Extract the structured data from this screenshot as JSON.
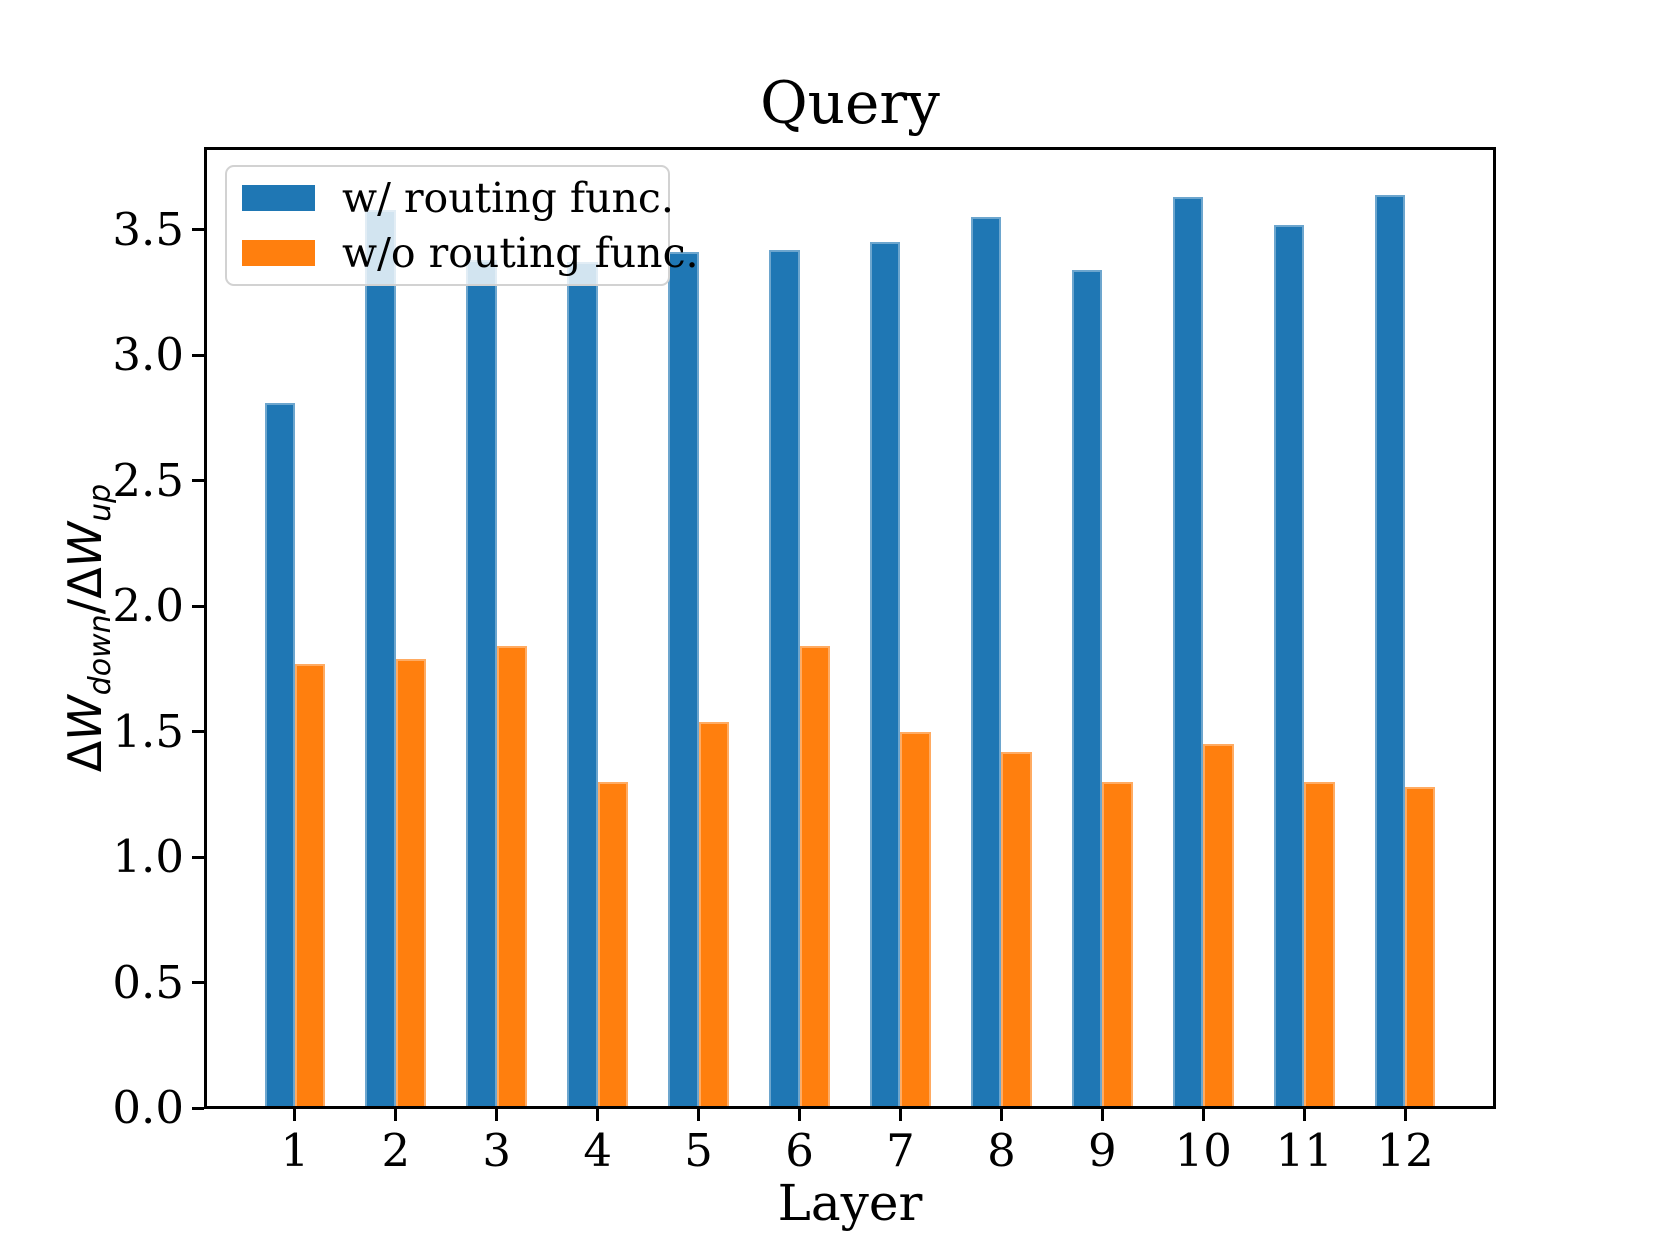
{
  "title": "Query",
  "chart_data": {
    "type": "bar",
    "title": "Query",
    "xlabel": "Layer",
    "ylabel": "ΔW_down/ΔW_up",
    "categories": [
      "1",
      "2",
      "3",
      "4",
      "5",
      "6",
      "7",
      "8",
      "9",
      "10",
      "11",
      "12"
    ],
    "series": [
      {
        "name": "w/ routing func.",
        "color": "#1f77b4",
        "values": [
          2.81,
          3.58,
          3.38,
          3.37,
          3.41,
          3.42,
          3.45,
          3.55,
          3.34,
          3.63,
          3.52,
          3.64
        ]
      },
      {
        "name": "w/o routing func.",
        "color": "#ff7f0e",
        "values": [
          1.77,
          1.79,
          1.84,
          1.3,
          1.54,
          1.84,
          1.5,
          1.42,
          1.3,
          1.45,
          1.3,
          1.28
        ]
      }
    ],
    "ylim": [
      0,
      3.822
    ],
    "xlim": [
      0.12,
      12.88
    ],
    "yticks": [
      "0.0",
      "0.5",
      "1.0",
      "1.5",
      "2.0",
      "2.5",
      "3.0",
      "3.5"
    ],
    "ytick_values": [
      0,
      0.5,
      1.0,
      1.5,
      2.0,
      2.5,
      3.0,
      3.5
    ],
    "bar_width": 0.3,
    "grid": false,
    "legend_position": "upper left"
  },
  "ylabel_parts": {
    "delta1": "Δ",
    "w1": "W",
    "sub1": "down",
    "slash": "/",
    "delta2": "Δ",
    "w2": "W",
    "sub2": "up"
  }
}
